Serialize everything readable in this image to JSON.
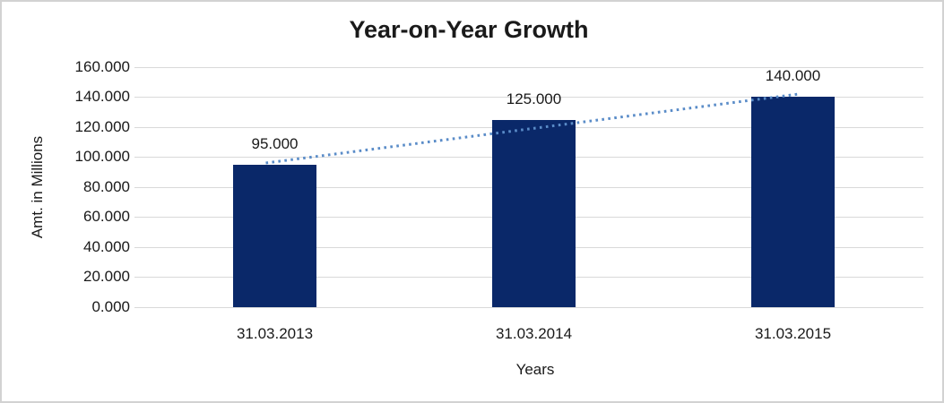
{
  "frame": {
    "background": "#ffffff",
    "border_color": "#d2d2d2"
  },
  "chart_data": {
    "type": "bar",
    "title": "Year-on-Year Growth",
    "xlabel": "Years",
    "ylabel": "Amt. in Millions",
    "categories": [
      "31.03.2013",
      "31.03.2014",
      "31.03.2015"
    ],
    "series": [
      {
        "name": "Amt. in Millions",
        "values": [
          95,
          125,
          140
        ],
        "value_labels": [
          "95.000",
          "125.000",
          "140.000"
        ],
        "color": "#0a2869"
      }
    ],
    "y_ticks": [
      {
        "value": 0,
        "label": "0.000"
      },
      {
        "value": 20,
        "label": "20.000"
      },
      {
        "value": 40,
        "label": "40.000"
      },
      {
        "value": 60,
        "label": "60.000"
      },
      {
        "value": 80,
        "label": "80.000"
      },
      {
        "value": 100,
        "label": "100.000"
      },
      {
        "value": 120,
        "label": "120.000"
      },
      {
        "value": 140,
        "label": "140.000"
      },
      {
        "value": 160,
        "label": "160.000"
      }
    ],
    "ylim": [
      0,
      160
    ],
    "grid": "horizontal",
    "gridline_color": "#d9d9d9",
    "legend": "none",
    "trendline": {
      "style": "dotted",
      "color": "#5a8cc8",
      "start_value": 96,
      "end_value": 142
    }
  }
}
